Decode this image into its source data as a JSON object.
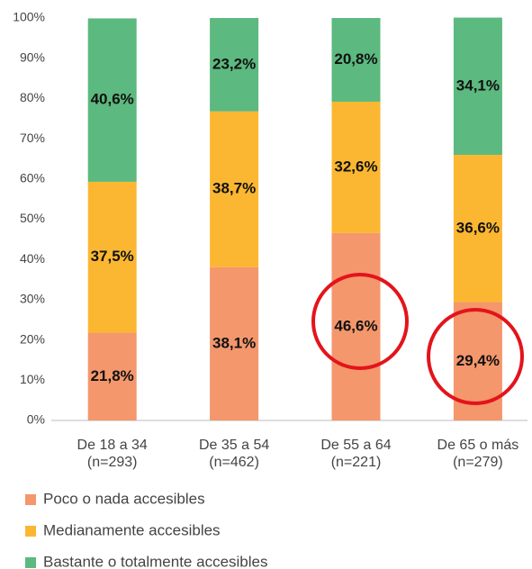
{
  "chart_data": {
    "type": "stacked_bar",
    "categories": [
      [
        "De 18 a 34",
        "(n=293)"
      ],
      [
        "De 35 a 54",
        "(n=462)"
      ],
      [
        "De 55 a 64",
        "(n=221)"
      ],
      [
        "De 65 o más",
        "(n=279)"
      ]
    ],
    "series": [
      {
        "name": "Poco o nada accesibles",
        "color": "#f4976c",
        "values": [
          21.8,
          38.1,
          46.6,
          29.4
        ],
        "value_labels": [
          "21,8%",
          "38,1%",
          "46,6%",
          "29,4%"
        ]
      },
      {
        "name": "Medianamente accesibles",
        "color": "#fbb732",
        "values": [
          37.5,
          38.7,
          32.6,
          36.6
        ],
        "value_labels": [
          "37,5%",
          "38,7%",
          "32,6%",
          "36,6%"
        ]
      },
      {
        "name": "Bastante o totalmente accesibles",
        "color": "#5cb97f",
        "values": [
          40.6,
          23.2,
          20.8,
          34.1
        ],
        "value_labels": [
          "40,6%",
          "23,2%",
          "20,8%",
          "34,1%"
        ]
      }
    ],
    "ylim": [
      0,
      100
    ],
    "yticks": [
      {
        "value": 0,
        "label": "0%"
      },
      {
        "value": 10,
        "label": "10%"
      },
      {
        "value": 20,
        "label": "20%"
      },
      {
        "value": 30,
        "label": "30%"
      },
      {
        "value": 40,
        "label": "40%"
      },
      {
        "value": 50,
        "label": "50%"
      },
      {
        "value": 60,
        "label": "60%"
      },
      {
        "value": 70,
        "label": "70%"
      },
      {
        "value": 80,
        "label": "80%"
      },
      {
        "value": 90,
        "label": "90%"
      },
      {
        "value": 100,
        "label": "100%"
      }
    ],
    "legend": "bottom-left"
  }
}
